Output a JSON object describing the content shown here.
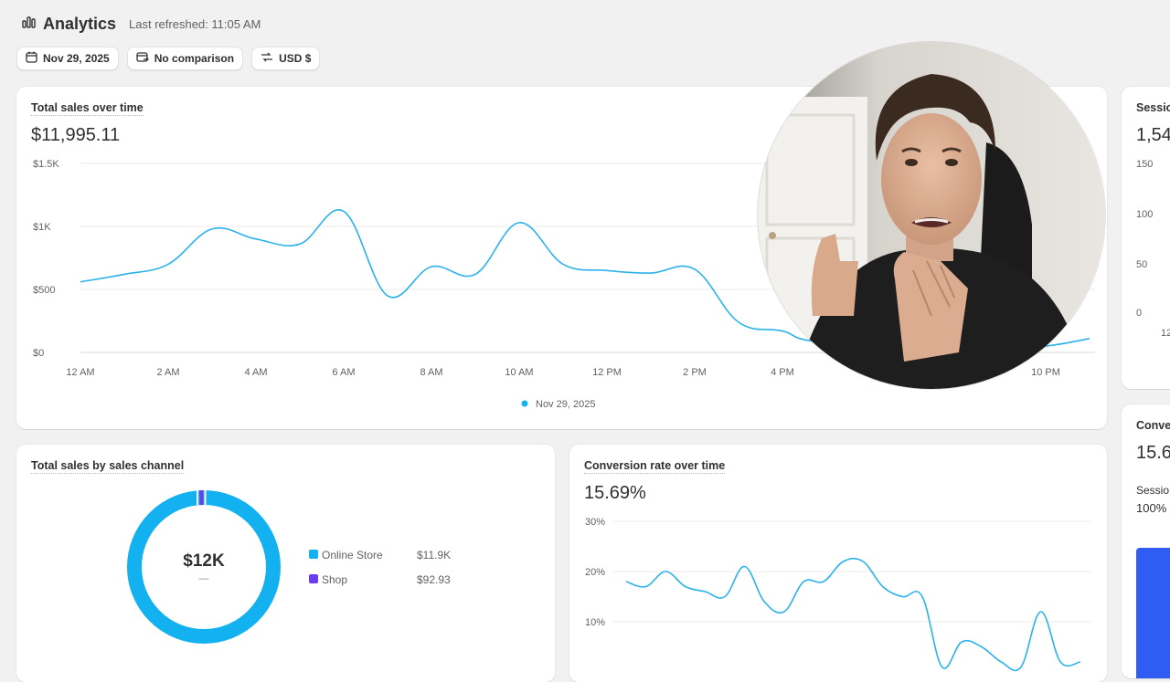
{
  "header": {
    "title": "Analytics",
    "refresh_label": "Last refreshed: 11:05 AM",
    "icon": "bar-chart-icon"
  },
  "filters": [
    {
      "label": "Nov 29, 2025",
      "icon": "calendar-icon"
    },
    {
      "label": "No comparison",
      "icon": "calendar-compare-icon"
    },
    {
      "label": "USD $",
      "icon": "currency-swap-icon"
    }
  ],
  "total_sales": {
    "title": "Total sales over time",
    "value": "$11,995.11",
    "legend": "Nov 29, 2025",
    "y_ticks": [
      "$1.5K",
      "$1K",
      "$500",
      "$0"
    ],
    "x_ticks": [
      "12 AM",
      "2 AM",
      "4 AM",
      "6 AM",
      "8 AM",
      "10 AM",
      "12 PM",
      "2 PM",
      "4 PM",
      "10 PM"
    ]
  },
  "sessions_card": {
    "title": "Sessio",
    "value": "1,54",
    "y_ticks": [
      "150",
      "100",
      "50",
      "0"
    ],
    "x_tick": "12"
  },
  "conversion_side_card": {
    "title": "Conve",
    "value": "15.6",
    "sub_label": "Sessio",
    "sub_value": "100%"
  },
  "sales_channel": {
    "title": "Total sales by sales channel",
    "center_value": "$12K",
    "center_sub": "—",
    "channels": [
      {
        "name": "Online Store",
        "value": "$11.9K",
        "color": "#14b1f1"
      },
      {
        "name": "Shop",
        "value": "$92.93",
        "color": "#6a3ef0"
      }
    ]
  },
  "conversion_rate": {
    "title": "Conversion rate over time",
    "value": "15.69%",
    "y_ticks": [
      "30%",
      "20%",
      "10%"
    ]
  },
  "colors": {
    "line": "#2bb2ea",
    "accent_blue": "#2f5cf2"
  },
  "chart_data": [
    {
      "type": "line",
      "title": "Total sales over time",
      "x": [
        "12 AM",
        "1 AM",
        "2 AM",
        "3 AM",
        "4 AM",
        "5 AM",
        "6 AM",
        "7 AM",
        "8 AM",
        "9 AM",
        "10 AM",
        "11 AM",
        "12 PM",
        "1 PM",
        "2 PM",
        "3 PM",
        "4 PM",
        "5 PM",
        "9 PM",
        "10 PM",
        "11 PM"
      ],
      "series": [
        {
          "name": "Nov 29, 2025",
          "values": [
            560,
            620,
            700,
            980,
            900,
            860,
            1120,
            450,
            680,
            620,
            1030,
            700,
            650,
            630,
            660,
            240,
            170,
            80,
            40,
            50,
            110
          ]
        }
      ],
      "y_ticks": [
        "$0",
        "$500",
        "$1K",
        "$1.5K"
      ],
      "ylim": [
        0,
        1500
      ],
      "grid": true,
      "legend": "bottom-center"
    },
    {
      "type": "pie",
      "title": "Total sales by sales channel",
      "categories": [
        "Online Store",
        "Shop"
      ],
      "values": [
        11900,
        92.93
      ]
    },
    {
      "type": "line",
      "title": "Conversion rate over time",
      "x": [
        "12 AM",
        "1 AM",
        "2 AM",
        "3 AM",
        "4 AM",
        "5 AM",
        "6 AM",
        "7 AM",
        "8 AM",
        "9 AM",
        "10 AM",
        "11 AM",
        "12 PM",
        "1 PM",
        "2 PM",
        "3 PM",
        "4 PM",
        "5 PM",
        "6 PM",
        "7 PM",
        "8 PM",
        "9 PM",
        "10 PM",
        "11 PM"
      ],
      "series": [
        {
          "name": "Conversion rate",
          "values": [
            18,
            17,
            20,
            17,
            16,
            15,
            21,
            14,
            12,
            18,
            18,
            22,
            22,
            17,
            15,
            15,
            1,
            6,
            5,
            2,
            1,
            12,
            2,
            2
          ]
        }
      ],
      "y_ticks": [
        "10%",
        "20%",
        "30%"
      ],
      "ylim": [
        0,
        30
      ],
      "grid": true
    }
  ]
}
